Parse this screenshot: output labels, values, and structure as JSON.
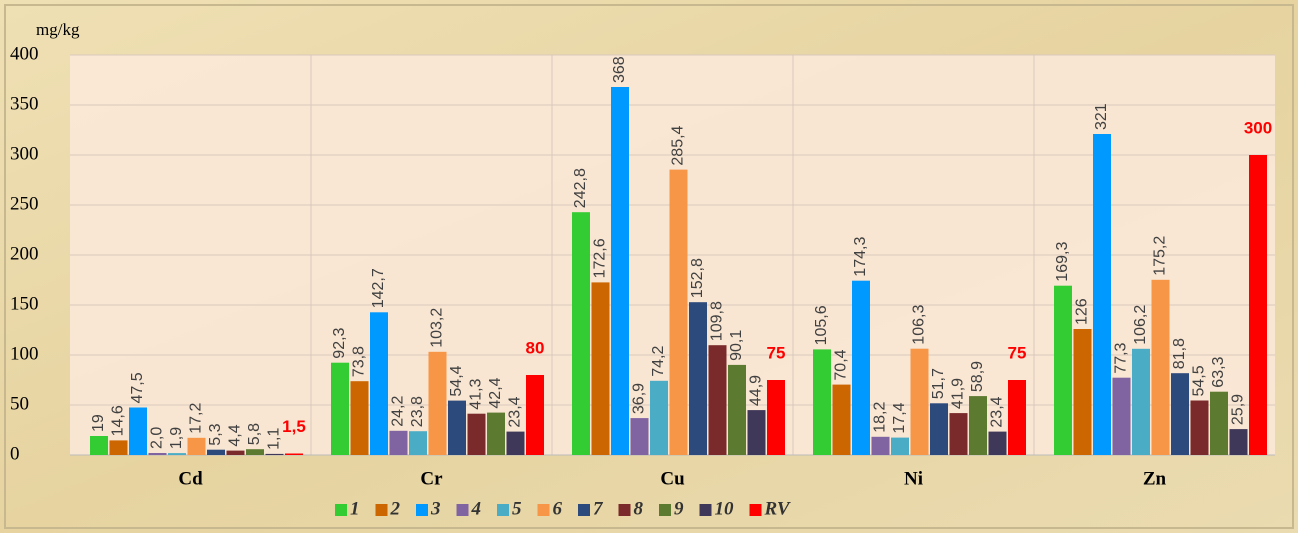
{
  "chart_data": {
    "type": "bar",
    "y_label": "mg/kg",
    "categories": [
      "Cd",
      "Cr",
      "Cu",
      "Ni",
      "Zn"
    ],
    "ylim": [
      0,
      400
    ],
    "yticks": [
      0,
      50,
      100,
      150,
      200,
      250,
      300,
      350,
      400
    ],
    "grid": true,
    "series": [
      {
        "name": "1",
        "color": "#33cc33",
        "values": [
          19,
          92.3,
          242.8,
          105.6,
          169.3
        ],
        "value_labels": [
          "19",
          "92,3",
          "242,8",
          "105,6",
          "169,3"
        ]
      },
      {
        "name": "2",
        "color": "#cc6600",
        "values": [
          14.6,
          73.8,
          172.6,
          70.4,
          126
        ],
        "value_labels": [
          "14,6",
          "73,8",
          "172,6",
          "70,4",
          "126"
        ]
      },
      {
        "name": "3",
        "color": "#0099ff",
        "values": [
          47.5,
          142.7,
          368,
          174.3,
          321
        ],
        "value_labels": [
          "47,5",
          "142,7",
          "368",
          "174,3",
          "321"
        ]
      },
      {
        "name": "4",
        "color": "#8064a2",
        "values": [
          2.0,
          24.2,
          36.9,
          18.2,
          77.3
        ],
        "value_labels": [
          "2,0",
          "24,2",
          "36,9",
          "18,2",
          "77,3"
        ]
      },
      {
        "name": "5",
        "color": "#4bacc6",
        "values": [
          1.9,
          23.8,
          74.2,
          17.4,
          106.2
        ],
        "value_labels": [
          "1,9",
          "23,8",
          "74,2",
          "17,4",
          "106,2"
        ]
      },
      {
        "name": "6",
        "color": "#f79646",
        "values": [
          17.2,
          103.2,
          285.4,
          106.3,
          175.2
        ],
        "value_labels": [
          "17,2",
          "103,2",
          "285,4",
          "106,3",
          "175,2"
        ]
      },
      {
        "name": "7",
        "color": "#2c4a7c",
        "values": [
          5.3,
          54.4,
          152.8,
          51.7,
          81.8
        ],
        "value_labels": [
          "5,3",
          "54,4",
          "152,8",
          "51,7",
          "81,8"
        ]
      },
      {
        "name": "8",
        "color": "#7a2a2a",
        "values": [
          4.4,
          41.3,
          109.8,
          41.9,
          54.5
        ],
        "value_labels": [
          "4,4",
          "41,3",
          "109,8",
          "41,9",
          "54,5"
        ]
      },
      {
        "name": "9",
        "color": "#5c7a30",
        "values": [
          5.8,
          42.4,
          90.1,
          58.9,
          63.3
        ],
        "value_labels": [
          "5,8",
          "42,4",
          "90,1",
          "58,9",
          "63,3"
        ]
      },
      {
        "name": "10",
        "color": "#403858",
        "values": [
          1.1,
          23.4,
          44.9,
          23.4,
          25.9
        ],
        "value_labels": [
          "1,1",
          "23,4",
          "44,9",
          "23,4",
          "25,9"
        ]
      },
      {
        "name": "RV",
        "color": "#ff0000",
        "values": [
          1.5,
          80,
          75,
          75,
          300
        ],
        "value_labels": [
          "1,5",
          "80",
          "75",
          "75",
          "300"
        ]
      }
    ]
  }
}
